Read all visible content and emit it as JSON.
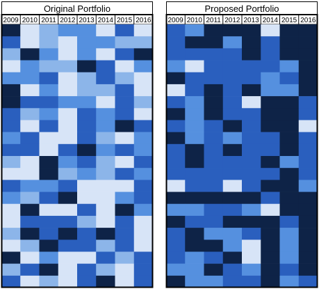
{
  "colors": {
    "c0": "#0e2347",
    "c1": "#2a5fbe",
    "c2": "#5590df",
    "c3": "#8cb5e9",
    "c4": "#d7e4f7"
  },
  "chart_data": [
    {
      "type": "heatmap",
      "title": "Original Portfolio",
      "years": [
        "2009",
        "2010",
        "2011",
        "2012",
        "2013",
        "2014",
        "2015",
        "2016"
      ],
      "color_levels": [
        0,
        1,
        2,
        3,
        4
      ],
      "rows": [
        [
          0,
          4,
          3,
          2,
          2,
          4,
          1,
          4
        ],
        [
          1,
          4,
          3,
          4,
          2,
          2,
          3,
          3
        ],
        [
          3,
          0,
          2,
          4,
          2,
          4,
          1,
          0
        ],
        [
          4,
          2,
          3,
          3,
          0,
          1,
          4,
          2
        ],
        [
          2,
          2,
          1,
          4,
          3,
          1,
          3,
          4
        ],
        [
          0,
          4,
          2,
          4,
          3,
          3,
          1,
          4
        ],
        [
          0,
          1,
          1,
          2,
          2,
          4,
          1,
          3
        ],
        [
          1,
          3,
          2,
          4,
          1,
          2,
          1,
          4
        ],
        [
          1,
          4,
          1,
          4,
          1,
          2,
          0,
          1
        ],
        [
          2,
          1,
          4,
          4,
          1,
          3,
          4,
          2
        ],
        [
          1,
          1,
          4,
          1,
          0,
          2,
          1,
          2
        ],
        [
          3,
          4,
          0,
          2,
          1,
          3,
          4,
          1
        ],
        [
          4,
          4,
          0,
          3,
          2,
          3,
          1,
          2
        ],
        [
          1,
          2,
          2,
          1,
          4,
          4,
          4,
          1
        ],
        [
          2,
          3,
          1,
          0,
          4,
          4,
          2,
          1
        ],
        [
          4,
          0,
          4,
          4,
          1,
          4,
          0,
          2
        ],
        [
          4,
          1,
          1,
          1,
          3,
          4,
          1,
          4
        ],
        [
          3,
          0,
          1,
          0,
          1,
          0,
          1,
          4
        ],
        [
          4,
          3,
          0,
          1,
          1,
          3,
          1,
          4
        ],
        [
          0,
          4,
          2,
          4,
          4,
          1,
          3,
          1
        ],
        [
          3,
          1,
          0,
          4,
          1,
          3,
          4,
          1
        ],
        [
          1,
          4,
          3,
          4,
          1,
          0,
          4,
          1
        ]
      ]
    },
    {
      "type": "heatmap",
      "title": "Proposed Portfolio",
      "years": [
        "2009",
        "2010",
        "2011",
        "2012",
        "2013",
        "2014",
        "2015",
        "2016"
      ],
      "color_levels": [
        0,
        1,
        2,
        3,
        4
      ],
      "rows": [
        [
          1,
          2,
          0,
          0,
          0,
          4,
          0,
          0
        ],
        [
          1,
          0,
          0,
          2,
          0,
          1,
          0,
          0
        ],
        [
          1,
          1,
          1,
          1,
          0,
          1,
          0,
          0
        ],
        [
          2,
          4,
          1,
          1,
          1,
          1,
          2,
          0
        ],
        [
          0,
          1,
          1,
          1,
          1,
          2,
          1,
          0
        ],
        [
          4,
          1,
          0,
          1,
          0,
          2,
          2,
          0
        ],
        [
          1,
          2,
          0,
          1,
          4,
          0,
          0,
          1
        ],
        [
          0,
          2,
          0,
          1,
          1,
          0,
          0,
          1
        ],
        [
          1,
          2,
          1,
          0,
          1,
          0,
          0,
          4
        ],
        [
          0,
          2,
          1,
          2,
          1,
          1,
          0,
          1
        ],
        [
          1,
          0,
          1,
          0,
          1,
          1,
          0,
          1
        ],
        [
          1,
          0,
          1,
          1,
          1,
          0,
          2,
          1
        ],
        [
          1,
          1,
          1,
          1,
          1,
          1,
          0,
          1
        ],
        [
          4,
          1,
          1,
          4,
          1,
          0,
          0,
          2
        ],
        [
          0,
          0,
          0,
          0,
          0,
          1,
          0,
          0
        ],
        [
          2,
          2,
          1,
          1,
          2,
          4,
          0,
          0
        ],
        [
          0,
          1,
          1,
          0,
          0,
          0,
          1,
          0
        ],
        [
          1,
          0,
          2,
          2,
          1,
          0,
          2,
          0
        ],
        [
          1,
          0,
          0,
          2,
          4,
          0,
          2,
          0
        ],
        [
          1,
          2,
          1,
          0,
          4,
          0,
          2,
          0
        ],
        [
          2,
          2,
          0,
          1,
          2,
          0,
          1,
          0
        ],
        [
          0,
          2,
          2,
          1,
          1,
          0,
          2,
          1
        ]
      ]
    }
  ]
}
